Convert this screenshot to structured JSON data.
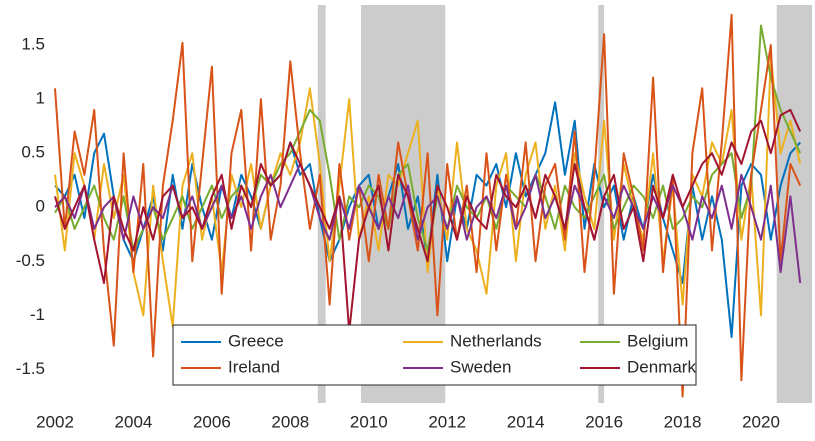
{
  "chart_data": {
    "type": "line",
    "x": [
      2002,
      2002.25,
      2002.5,
      2002.75,
      2003,
      2003.25,
      2003.5,
      2003.75,
      2004,
      2004.25,
      2004.5,
      2004.75,
      2005,
      2005.25,
      2005.5,
      2005.75,
      2006,
      2006.25,
      2006.5,
      2006.75,
      2007,
      2007.25,
      2007.5,
      2007.75,
      2008,
      2008.25,
      2008.5,
      2008.75,
      2009,
      2009.25,
      2009.5,
      2009.75,
      2010,
      2010.25,
      2010.5,
      2010.75,
      2011,
      2011.25,
      2011.5,
      2011.75,
      2012,
      2012.25,
      2012.5,
      2012.75,
      2013,
      2013.25,
      2013.5,
      2013.75,
      2014,
      2014.25,
      2014.5,
      2014.75,
      2015,
      2015.25,
      2015.5,
      2015.75,
      2016,
      2016.25,
      2016.5,
      2016.75,
      2017,
      2017.25,
      2017.5,
      2017.75,
      2018,
      2018.25,
      2018.5,
      2018.75,
      2019,
      2019.25,
      2019.5,
      2019.75,
      2020,
      2020.25,
      2020.5,
      2020.75,
      2021
    ],
    "series": [
      {
        "name": "Greece",
        "color": "#0072BD",
        "values": [
          0.2,
          0.1,
          0.3,
          -0.1,
          0.5,
          0.68,
          0.1,
          -0.3,
          -0.5,
          -0.2,
          0.1,
          -0.4,
          0.3,
          -0.2,
          0.4,
          0.0,
          -0.3,
          0.2,
          -0.1,
          0.3,
          0.1,
          -0.2,
          0.2,
          0.3,
          0.6,
          0.3,
          0.4,
          -0.1,
          -0.5,
          -0.3,
          0.0,
          0.2,
          0.3,
          -0.2,
          0.1,
          0.4,
          -0.2,
          0.1,
          -0.5,
          0.3,
          -0.5,
          0.1,
          -0.2,
          0.3,
          0.2,
          0.4,
          0.0,
          0.5,
          0.1,
          0.3,
          0.5,
          0.97,
          0.3,
          0.8,
          -0.2,
          0.4,
          0.0,
          0.2,
          -0.3,
          0.1,
          -0.2,
          0.3,
          -0.1,
          -0.4,
          -0.7,
          0.2,
          -0.3,
          0.1,
          -0.3,
          -1.2,
          0.2,
          0.4,
          0.3,
          -0.3,
          0.2,
          0.5,
          0.6
        ]
      },
      {
        "name": "Netherlands",
        "color": "#EDB120",
        "values": [
          0.3,
          -0.4,
          0.5,
          0.2,
          -0.3,
          0.4,
          -0.1,
          0.3,
          -0.6,
          -1.0,
          0.2,
          -0.5,
          -1.1,
          0.2,
          0.5,
          -0.3,
          0.1,
          -0.6,
          0.3,
          0.0,
          0.4,
          -0.2,
          0.2,
          0.5,
          0.3,
          0.6,
          1.1,
          0.4,
          -0.5,
          0.2,
          1.0,
          -0.3,
          0.1,
          -0.4,
          0.3,
          0.2,
          0.5,
          0.8,
          -0.6,
          0.2,
          -0.3,
          0.6,
          -0.2,
          -0.4,
          -0.8,
          0.2,
          0.5,
          -0.5,
          0.3,
          0.6,
          -0.2,
          0.2,
          -0.4,
          0.5,
          0.1,
          -0.2,
          0.8,
          -0.3,
          0.4,
          0.0,
          -0.3,
          0.5,
          -0.5,
          0.2,
          -0.9,
          0.3,
          0.1,
          0.6,
          0.4,
          0.9,
          -0.3,
          0.3,
          -1.0,
          1.4,
          0.5,
          0.8,
          0.4
        ]
      },
      {
        "name": "Belgium",
        "color": "#77AC30",
        "values": [
          -0.05,
          0.1,
          -0.2,
          0.0,
          0.2,
          -0.1,
          -0.3,
          0.1,
          -0.4,
          -0.2,
          0.0,
          -0.3,
          -0.1,
          0.1,
          -0.2,
          0.0,
          0.2,
          -0.1,
          0.1,
          0.2,
          0.0,
          0.3,
          0.2,
          0.4,
          0.5,
          0.7,
          0.9,
          0.8,
          0.3,
          -0.3,
          0.1,
          0.0,
          0.2,
          0.1,
          -0.2,
          0.3,
          0.4,
          -0.1,
          -0.4,
          0.1,
          -0.2,
          0.2,
          0.0,
          -0.1,
          0.1,
          -0.2,
          0.2,
          0.1,
          0.0,
          0.3,
          0.1,
          -0.2,
          0.2,
          0.0,
          -0.1,
          0.1,
          0.3,
          -0.2,
          0.0,
          0.2,
          0.1,
          -0.1,
          0.2,
          -0.2,
          -0.1,
          0.1,
          0.0,
          0.3,
          0.4,
          0.5,
          -0.1,
          0.2,
          1.68,
          1.2,
          0.9,
          0.7,
          0.5
        ]
      },
      {
        "name": "Ireland",
        "color": "#D95319",
        "values": [
          1.1,
          -0.2,
          0.7,
          0.3,
          0.9,
          -0.4,
          -1.28,
          0.5,
          -0.6,
          0.4,
          -1.38,
          0.2,
          0.8,
          1.52,
          -0.5,
          0.4,
          1.3,
          -0.8,
          0.5,
          0.9,
          -0.4,
          1.0,
          -0.3,
          0.2,
          1.35,
          0.5,
          -0.2,
          0.3,
          -0.9,
          0.4,
          -0.3,
          0.2,
          -0.5,
          0.3,
          -0.2,
          0.6,
          0.1,
          -0.4,
          0.5,
          -1.0,
          0.4,
          -0.3,
          0.2,
          -0.6,
          0.5,
          -0.4,
          0.3,
          -0.2,
          0.6,
          -0.5,
          0.2,
          0.4,
          -0.3,
          0.7,
          -0.6,
          0.3,
          1.6,
          -0.8,
          0.5,
          0.1,
          -0.4,
          1.2,
          -0.6,
          0.3,
          -1.75,
          0.5,
          1.1,
          -0.4,
          0.6,
          1.78,
          -1.6,
          0.3,
          0.9,
          1.5,
          -0.5,
          0.4,
          0.2
        ]
      },
      {
        "name": "Sweden",
        "color": "#7E2F8E",
        "values": [
          0.0,
          0.1,
          -0.1,
          0.2,
          -0.2,
          0.0,
          0.1,
          -0.3,
          0.1,
          -0.2,
          0.0,
          -0.1,
          0.2,
          -0.1,
          0.1,
          -0.2,
          0.0,
          0.2,
          -0.1,
          0.1,
          -0.2,
          0.1,
          0.3,
          0.0,
          0.2,
          0.4,
          0.2,
          -0.1,
          -0.3,
          0.1,
          -0.2,
          0.2,
          0.0,
          -0.2,
          0.1,
          -0.1,
          0.2,
          -0.3,
          0.0,
          0.1,
          -0.2,
          0.1,
          -0.3,
          0.0,
          0.1,
          -0.1,
          0.2,
          -0.2,
          0.0,
          0.3,
          -0.1,
          0.1,
          -0.2,
          0.2,
          0.0,
          -0.3,
          0.1,
          -0.1,
          0.2,
          0.0,
          -0.2,
          0.1,
          -0.1,
          0.2,
          0.0,
          -0.3,
          0.1,
          -0.1,
          0.2,
          -0.2,
          0.3,
          0.0,
          -0.3,
          0.2,
          -0.6,
          0.1,
          -0.7
        ]
      },
      {
        "name": "Denmark",
        "color": "#A2142F",
        "values": [
          0.1,
          -0.2,
          0.0,
          0.2,
          -0.3,
          -0.7,
          0.1,
          -0.2,
          -0.4,
          0.0,
          -0.3,
          0.1,
          0.2,
          -0.1,
          0.0,
          -0.2,
          0.1,
          0.3,
          -0.2,
          0.2,
          0.0,
          0.4,
          0.2,
          0.3,
          0.6,
          0.4,
          0.2,
          0.0,
          -0.2,
          0.1,
          -1.15,
          -0.3,
          0.0,
          0.2,
          -0.4,
          0.3,
          0.1,
          -0.2,
          -0.5,
          0.2,
          0.0,
          -0.3,
          0.1,
          -0.1,
          -0.2,
          0.3,
          0.1,
          0.0,
          0.2,
          -0.1,
          0.3,
          0.1,
          -0.2,
          0.4,
          0.0,
          -0.3,
          0.1,
          0.3,
          -0.2,
          0.0,
          -0.5,
          0.2,
          -0.1,
          0.3,
          0.0,
          0.2,
          0.4,
          0.5,
          0.3,
          0.6,
          0.4,
          0.7,
          0.8,
          0.5,
          0.85,
          0.9,
          0.7
        ]
      }
    ],
    "shaded_regions": [
      [
        2008.7,
        2008.9
      ],
      [
        2009.8,
        2011.95
      ],
      [
        2015.85,
        2016.0
      ],
      [
        2020.4,
        2021.3
      ]
    ],
    "shade_color": "#cccccc",
    "xlim": [
      2002,
      2021.3
    ],
    "xticks": [
      2002,
      2004,
      2006,
      2008,
      2010,
      2012,
      2014,
      2016,
      2018,
      2020
    ],
    "ylim": [
      -1.81,
      1.87
    ],
    "yticks": [
      -1.5,
      -1,
      -0.5,
      0,
      0.5,
      1,
      1.5
    ],
    "legend": "bottom-center"
  }
}
